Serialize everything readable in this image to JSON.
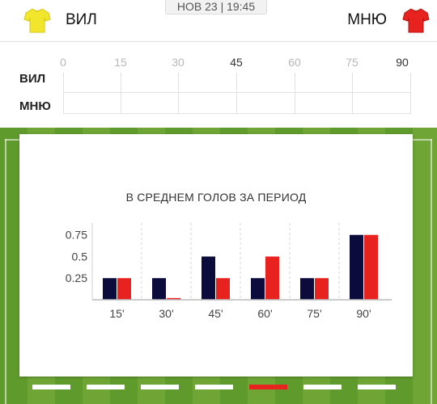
{
  "match": {
    "datetime": "НОВ 23 | 19:45",
    "home": {
      "name": "ВИЛ",
      "shirt": "yellow-shirt-icon",
      "color": "#f1e62b"
    },
    "away": {
      "name": "МНЮ",
      "shirt": "red-shirt-icon",
      "color": "#e8221e"
    }
  },
  "timeline": {
    "ticks": [
      "0",
      "15",
      "30",
      "45",
      "60",
      "75",
      "90"
    ],
    "rows": [
      "ВИЛ",
      "МНЮ"
    ]
  },
  "chart_data": {
    "type": "bar",
    "title": "В СРЕДНЕМ ГОЛОВ ЗА ПЕРИОД",
    "categories": [
      "15'",
      "30'",
      "45'",
      "60'",
      "75'",
      "90'"
    ],
    "series": [
      {
        "values": [
          0.25,
          0.25,
          0.5,
          0.25,
          0.25,
          0.75
        ],
        "color": "#0c0c3c"
      },
      {
        "values": [
          0.25,
          0.02,
          0.25,
          0.5,
          0.25,
          0.75
        ],
        "color": "#e8221e"
      }
    ],
    "yticks": [
      "0.25",
      "0.5",
      "0.75"
    ],
    "ylim": [
      0,
      0.85
    ],
    "grid": false,
    "legend": false
  },
  "pager": {
    "count": 7,
    "active_index": 4
  }
}
